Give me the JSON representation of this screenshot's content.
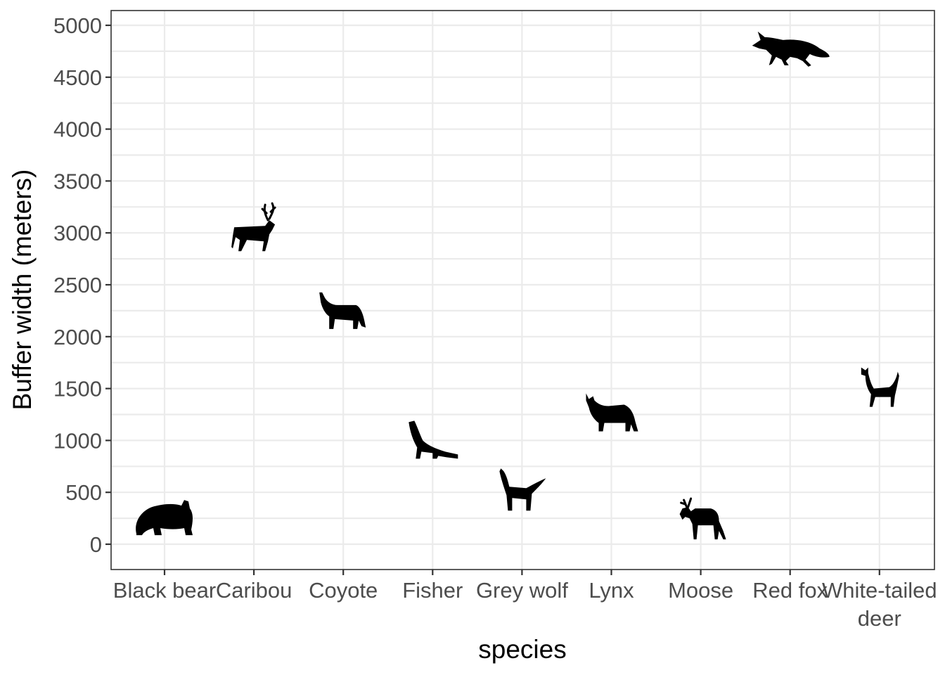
{
  "chart_data": {
    "type": "scatter",
    "xlabel": "species",
    "ylabel": "Buffer width (meters)",
    "ylim": [
      -250,
      5150
    ],
    "yticks": [
      0,
      500,
      1000,
      1500,
      2000,
      2500,
      3000,
      3500,
      4000,
      4500,
      5000
    ],
    "grid": true,
    "legend": "none",
    "marker": "animal silhouette icons",
    "categories": [
      "Black bear",
      "Caribou",
      "Coyote",
      "Fisher",
      "Grey wolf",
      "Lynx",
      "Moose",
      "Red fox",
      "White-tailed deer"
    ],
    "category_label_lines": [
      [
        "Black bear"
      ],
      [
        "Caribou"
      ],
      [
        "Coyote"
      ],
      [
        "Fisher"
      ],
      [
        "Grey wolf"
      ],
      [
        "Lynx"
      ],
      [
        "Moose"
      ],
      [
        "Red fox"
      ],
      [
        "White-tailed",
        "deer"
      ]
    ],
    "points": [
      {
        "species": "Black bear",
        "y": 250,
        "icon": "bear-icon"
      },
      {
        "species": "Caribou",
        "y": 3000,
        "icon": "caribou-icon"
      },
      {
        "species": "Coyote",
        "y": 2250,
        "icon": "coyote-icon"
      },
      {
        "species": "Fisher",
        "y": 1000,
        "icon": "fisher-icon"
      },
      {
        "species": "Grey wolf",
        "y": 500,
        "icon": "wolf-icon"
      },
      {
        "species": "Lynx",
        "y": 1250,
        "icon": "lynx-icon"
      },
      {
        "species": "Moose",
        "y": 250,
        "icon": "moose-icon"
      },
      {
        "species": "Red fox",
        "y": 4750,
        "icon": "fox-icon"
      },
      {
        "species": "White-tailed deer",
        "y": 1500,
        "icon": "deer-icon"
      }
    ],
    "colors": {
      "points": "#000000",
      "grid": "#ebebeb",
      "axis_text": "#4d4d4d",
      "border": "#333333"
    }
  }
}
